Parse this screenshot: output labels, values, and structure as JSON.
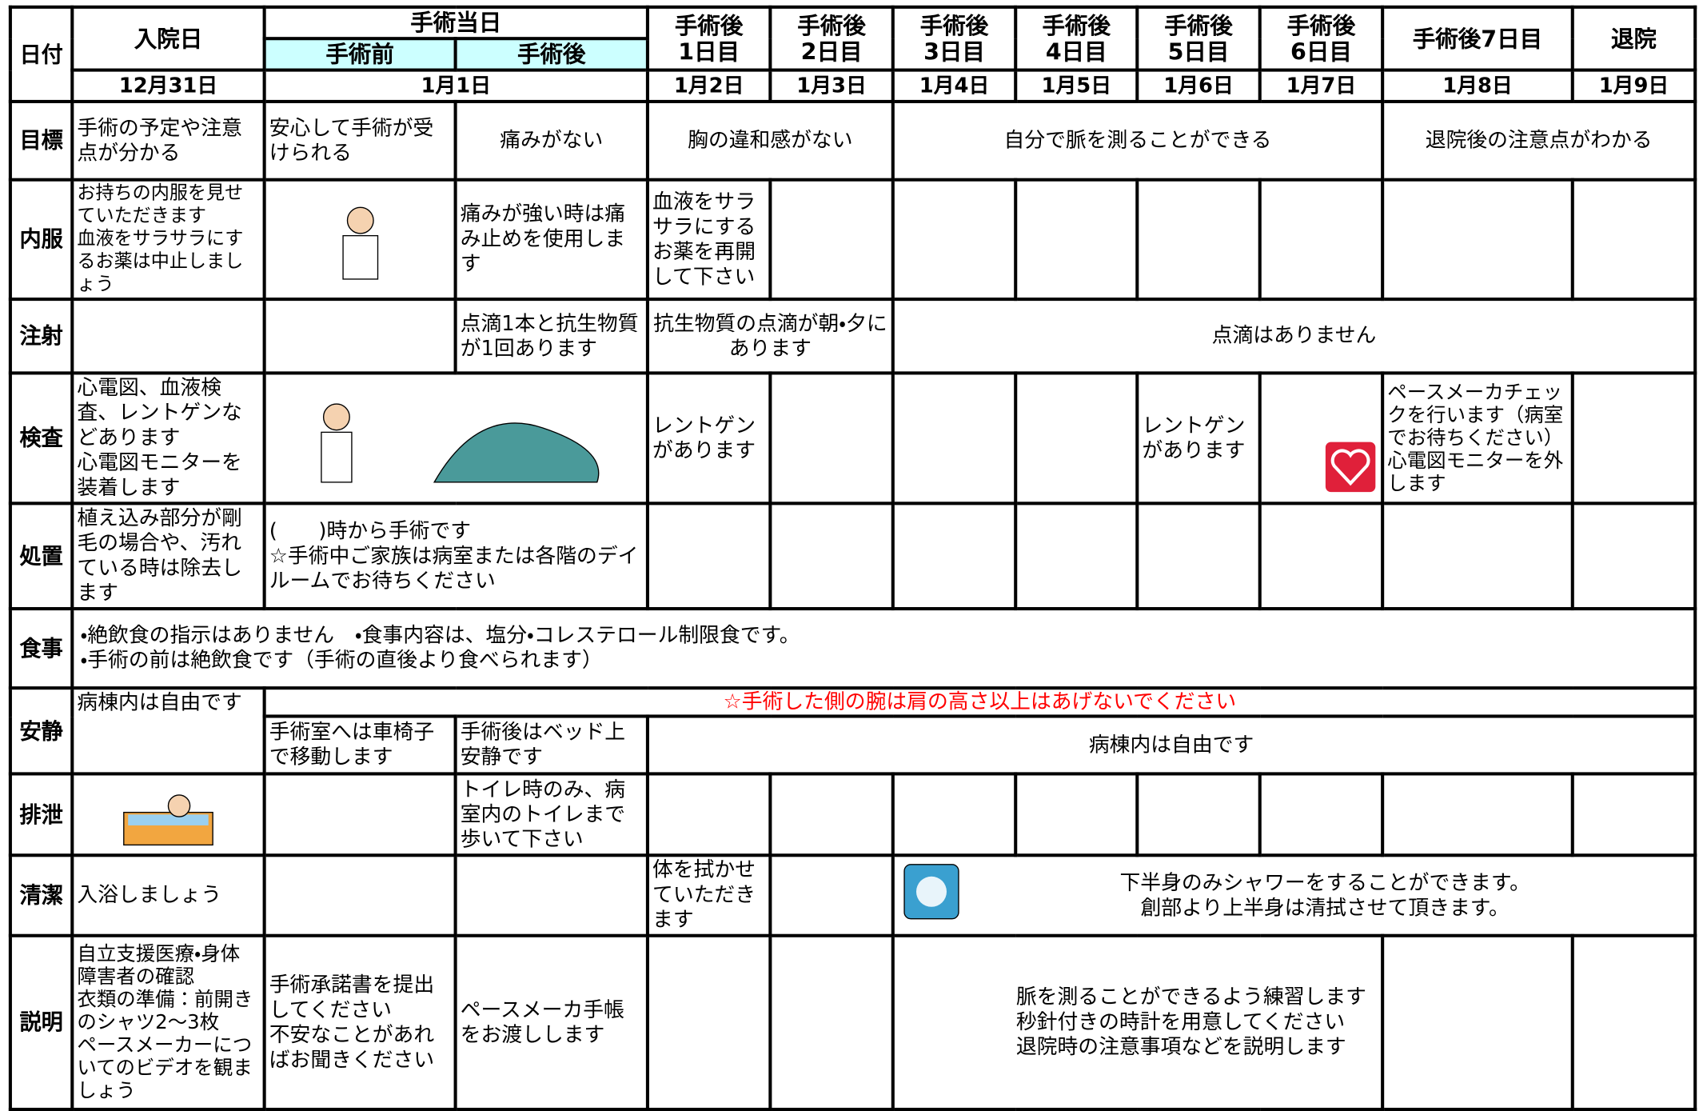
{
  "header": {
    "row_label": "日付",
    "admission_day": "入院日",
    "surgery_day": "手術当日",
    "before_surgery": "手術前",
    "after_surgery": "手術後",
    "post_op_days": [
      "手術後\n1日目",
      "手術後\n2日目",
      "手術後\n3日目",
      "手術後\n4日目",
      "手術後\n5日目",
      "手術後\n6日目",
      "手術後7日目"
    ],
    "discharge": "退院",
    "dates": [
      "12月31日",
      "1月1日",
      "1月2日",
      "1月3日",
      "1月4日",
      "1月5日",
      "1月6日",
      "1月7日",
      "1月8日",
      "1月9日"
    ]
  },
  "rows": [
    {
      "label": "目標",
      "cells": [
        "手術の予定や注意点が分かる",
        "安心して手術が受けられる",
        "痛みがない",
        "胸の違和感がない",
        "自分で脈を測ることができる",
        "退院後の注意点がわかる"
      ]
    },
    {
      "label": "内服",
      "cells": [
        "お持ちの内服を見せていただきます\n血液をサラサラにするお薬は中止しましょう",
        "痛みが強い時は痛み止めを使用します",
        "血液をサラサラにするお薬を再開して下さい"
      ]
    },
    {
      "label": "注射",
      "cells": [
        "点滴1本と抗生物質が1回あります",
        "抗生物質の点滴が朝・夕にあります",
        "点滴はありません"
      ]
    },
    {
      "label": "検査",
      "cells": [
        "心電図、血液検査、レントゲンなどあります\n心電図モニターを装着します",
        "レントゲンがあります",
        "レントゲンがあります",
        "ペースメーカチェックを行います（病室でお待ちください）\n心電図モニターを外します"
      ]
    },
    {
      "label": "処置",
      "cells": [
        "植え込み部分が剛毛の場合や、汚れている時は除去します",
        "(　　)時から手術です\n☆手術中ご家族は病室または各階のデイルームでお待ちください"
      ]
    },
    {
      "label": "食事",
      "cells": [
        "・絶飲食の指示はありません　・食事内容は、塩分・コレステロール制限食です。\n・手術の前は絶飲食です（手術の直後より食べられます）"
      ]
    },
    {
      "label": "安静",
      "notice": "☆手術した側の腕は肩の高さ以上はあげないでください",
      "cells": [
        "病棟内は自由です",
        "手術室へは車椅子で移動します",
        "手術後はベッド上安静です",
        "病棟内は自由です"
      ]
    },
    {
      "label": "排泄",
      "cells": [
        "トイレ時のみ、病室内のトイレまで歩いて下さい"
      ]
    },
    {
      "label": "清潔",
      "cells": [
        "入浴しましょう",
        "体を拭かせていただきます",
        "下半身のみシャワーをすることができます。\n創部より上半身は清拭させて頂きます。"
      ]
    },
    {
      "label": "説明",
      "cells": [
        "自立支援医療・身体障害者の確認\n衣類の準備：前開きのシャツ2～3枚\nペースメーカーについてのビデオを観ましょう",
        "手術承諾書を提出してください\n不安なことがあればお聞きください",
        "ペースメーカ手帳をお渡しします",
        "脈を測ることができるよう練習します\n秒針付きの時計を用意してください\n退院時の注意事項などを説明します"
      ]
    }
  ]
}
